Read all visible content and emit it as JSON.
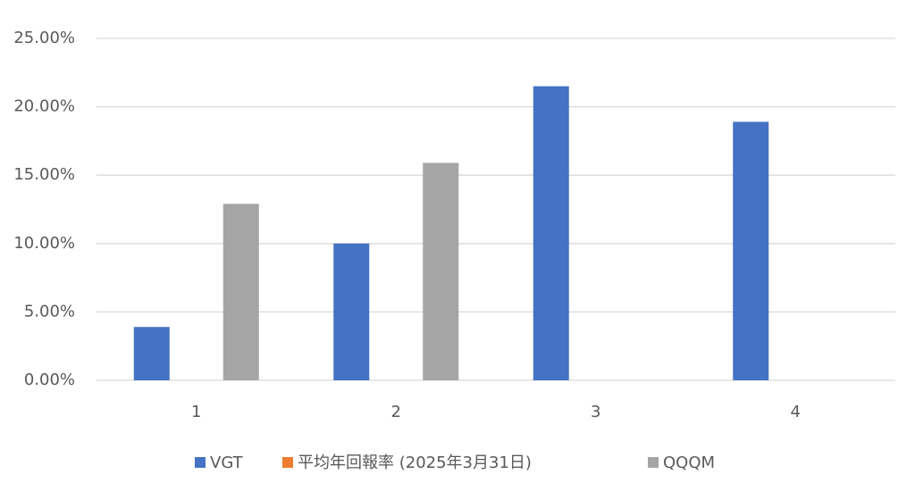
{
  "chart_data": {
    "type": "bar",
    "categories": [
      "1",
      "2",
      "3",
      "4"
    ],
    "series": [
      {
        "name": "VGT",
        "color": "#4472c4",
        "values": [
          3.9,
          10.0,
          21.5,
          18.9
        ]
      },
      {
        "name": "平均年回報率 (2025年3月31日)",
        "color": "#ed7d31",
        "values": [
          null,
          null,
          null,
          null
        ]
      },
      {
        "name": "QQQM",
        "color": "#a5a5a5",
        "values": [
          12.9,
          15.9,
          null,
          null
        ]
      }
    ],
    "ylim": [
      0,
      25
    ],
    "yticks": [
      {
        "value": 0,
        "label": "0.00%"
      },
      {
        "value": 5,
        "label": "5.00%"
      },
      {
        "value": 10,
        "label": "10.00%"
      },
      {
        "value": 15,
        "label": "15.00%"
      },
      {
        "value": 20,
        "label": "20.00%"
      },
      {
        "value": 25,
        "label": "25.00%"
      }
    ],
    "grid": true,
    "legend": "bottom"
  }
}
